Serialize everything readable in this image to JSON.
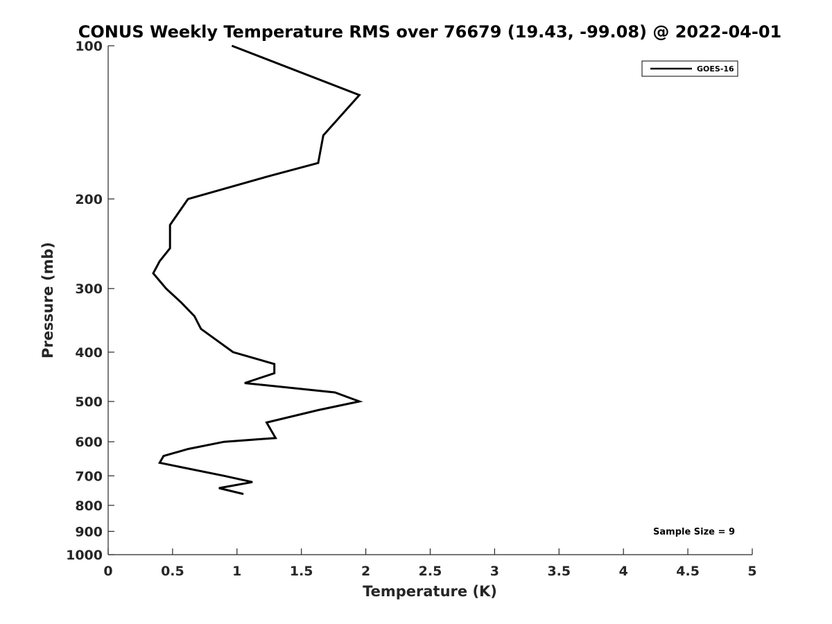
{
  "chart_data": {
    "type": "line",
    "title": "CONUS Weekly Temperature RMS over 76679 (19.43, -99.08) @ 2022-04-01",
    "xlabel": "Temperature (K)",
    "ylabel": "Pressure (mb)",
    "xlim": [
      0,
      5
    ],
    "ylim": [
      1000,
      100
    ],
    "yscale": "log",
    "x_ticks": [
      0,
      0.5,
      1,
      1.5,
      2,
      2.5,
      3,
      3.5,
      4,
      4.5,
      5
    ],
    "x_tick_labels": [
      "0",
      "0.5",
      "1",
      "1.5",
      "2",
      "2.5",
      "3",
      "3.5",
      "4",
      "4.5",
      "5"
    ],
    "y_ticks": [
      100,
      200,
      300,
      400,
      500,
      600,
      700,
      800,
      900,
      1000
    ],
    "y_tick_labels": [
      "100",
      "200",
      "300",
      "400",
      "500",
      "600",
      "700",
      "800",
      "900",
      "1000"
    ],
    "legend_position": "top-right",
    "grid": false,
    "series": [
      {
        "name": "GOES-16",
        "color": "#000000",
        "x": [
          0.96,
          1.95,
          1.67,
          1.63,
          1.26,
          0.62,
          0.48,
          0.48,
          0.4,
          0.35,
          0.45,
          0.57,
          0.67,
          0.72,
          0.97,
          1.29,
          1.29,
          1.06,
          1.76,
          1.95,
          1.63,
          1.23,
          1.3,
          0.9,
          0.62,
          0.43,
          0.4,
          0.9,
          1.12,
          0.86,
          1.05
        ],
        "y": [
          100,
          125,
          150,
          170,
          180,
          200,
          225,
          250,
          265,
          280,
          300,
          320,
          340,
          360,
          400,
          422,
          440,
          460,
          480,
          500,
          520,
          550,
          590,
          600,
          620,
          640,
          660,
          700,
          720,
          740,
          760
        ]
      }
    ],
    "annotations": [
      {
        "text": "Sample Size = 9",
        "position": "bottom-right"
      }
    ]
  }
}
